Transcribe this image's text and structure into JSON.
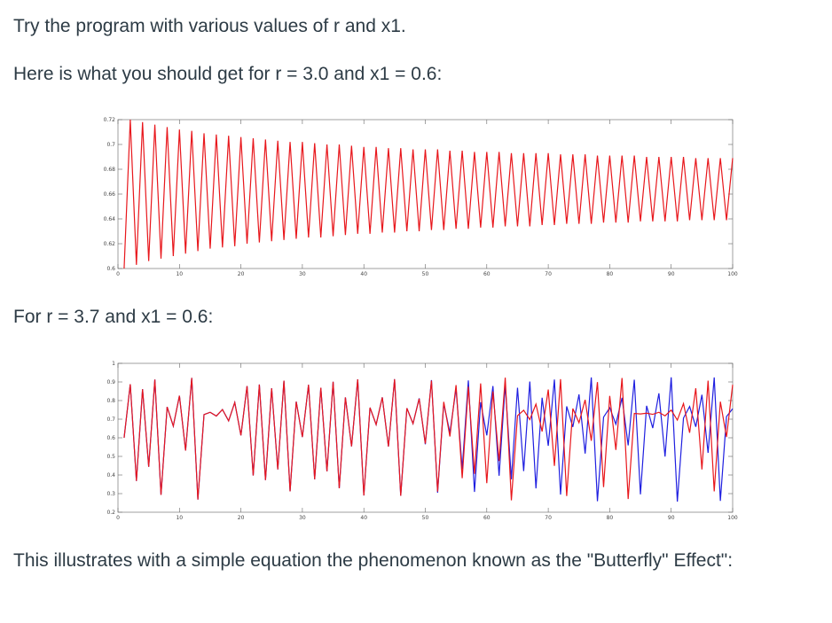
{
  "paragraphs": [
    "Try the program with various values of r and x1.",
    "Here is what you should get for r = 3.0 and x1 = 0.6:",
    "For r = 3.7 and x1 = 0.6:",
    "This illustrates with a simple equation the phenomenon known as the \"Butterfly\" Effect\":"
  ],
  "chart_data": [
    {
      "type": "line",
      "color": "#e8171c",
      "x": [
        1,
        2,
        3,
        4,
        5,
        6,
        7,
        8,
        9,
        10,
        11,
        12,
        13,
        14,
        15,
        16,
        17,
        18,
        19,
        20,
        21,
        22,
        23,
        24,
        25,
        26,
        27,
        28,
        29,
        30,
        31,
        32,
        33,
        34,
        35,
        36,
        37,
        38,
        39,
        40,
        41,
        42,
        43,
        44,
        45,
        46,
        47,
        48,
        49,
        50,
        51,
        52,
        53,
        54,
        55,
        56,
        57,
        58,
        59,
        60,
        61,
        62,
        63,
        64,
        65,
        66,
        67,
        68,
        69,
        70,
        71,
        72,
        73,
        74,
        75,
        76,
        77,
        78,
        79,
        80,
        81,
        82,
        83,
        84,
        85,
        86,
        87,
        88,
        89,
        90,
        91,
        92,
        93,
        94,
        95,
        96,
        97,
        98,
        99,
        100
      ],
      "values": [
        0.6,
        0.72,
        0.603,
        0.718,
        0.606,
        0.716,
        0.608,
        0.714,
        0.61,
        0.712,
        0.612,
        0.711,
        0.614,
        0.709,
        0.616,
        0.708,
        0.617,
        0.707,
        0.618,
        0.706,
        0.62,
        0.705,
        0.621,
        0.704,
        0.622,
        0.703,
        0.623,
        0.702,
        0.624,
        0.702,
        0.625,
        0.701,
        0.625,
        0.7,
        0.626,
        0.7,
        0.627,
        0.699,
        0.628,
        0.698,
        0.628,
        0.698,
        0.629,
        0.697,
        0.629,
        0.697,
        0.63,
        0.696,
        0.63,
        0.696,
        0.631,
        0.696,
        0.631,
        0.695,
        0.632,
        0.695,
        0.632,
        0.694,
        0.633,
        0.694,
        0.633,
        0.694,
        0.634,
        0.693,
        0.634,
        0.693,
        0.634,
        0.693,
        0.635,
        0.693,
        0.635,
        0.692,
        0.636,
        0.692,
        0.636,
        0.692,
        0.636,
        0.691,
        0.637,
        0.691,
        0.637,
        0.691,
        0.637,
        0.691,
        0.638,
        0.69,
        0.638,
        0.69,
        0.638,
        0.69,
        0.638,
        0.69,
        0.639,
        0.689,
        0.639,
        0.689,
        0.639,
        0.689,
        0.639,
        0.689
      ],
      "xlim": [
        0,
        100
      ],
      "xticks": [
        0,
        10,
        20,
        30,
        40,
        50,
        60,
        70,
        80,
        90,
        100
      ],
      "ylim": [
        0.6,
        0.72
      ],
      "yticks": [
        0.6,
        0.62,
        0.64,
        0.66,
        0.68,
        0.7,
        0.72
      ],
      "grid": false
    },
    {
      "type": "line",
      "x": [
        1,
        2,
        3,
        4,
        5,
        6,
        7,
        8,
        9,
        10,
        11,
        12,
        13,
        14,
        15,
        16,
        17,
        18,
        19,
        20,
        21,
        22,
        23,
        24,
        25,
        26,
        27,
        28,
        29,
        30,
        31,
        32,
        33,
        34,
        35,
        36,
        37,
        38,
        39,
        40,
        41,
        42,
        43,
        44,
        45,
        46,
        47,
        48,
        49,
        50,
        51,
        52,
        53,
        54,
        55,
        56,
        57,
        58,
        59,
        60,
        61,
        62,
        63,
        64,
        65,
        66,
        67,
        68,
        69,
        70,
        71,
        72,
        73,
        74,
        75,
        76,
        77,
        78,
        79,
        80,
        81,
        82,
        83,
        84,
        85,
        86,
        87,
        88,
        89,
        90,
        91,
        92,
        93,
        94,
        95,
        96,
        97,
        98,
        99,
        100
      ],
      "series": [
        {
          "color": "#1f1fe0",
          "values": [
            0.6,
            0.888,
            0.368,
            0.861,
            0.444,
            0.913,
            0.293,
            0.766,
            0.663,
            0.826,
            0.531,
            0.922,
            0.268,
            0.725,
            0.737,
            0.717,
            0.752,
            0.691,
            0.79,
            0.613,
            0.878,
            0.397,
            0.886,
            0.373,
            0.866,
            0.43,
            0.907,
            0.312,
            0.794,
            0.604,
            0.885,
            0.377,
            0.869,
            0.42,
            0.901,
            0.329,
            0.817,
            0.554,
            0.914,
            0.29,
            0.762,
            0.671,
            0.817,
            0.553,
            0.915,
            0.288,
            0.759,
            0.676,
            0.812,
            0.565,
            0.91,
            0.305,
            0.784,
            0.627,
            0.865,
            0.432,
            0.908,
            0.309,
            0.791,
            0.613,
            0.878,
            0.396,
            0.885,
            0.377,
            0.869,
            0.421,
            0.902,
            0.328,
            0.815,
            0.557,
            0.913,
            0.295,
            0.769,
            0.658,
            0.833,
            0.515,
            0.924,
            0.259,
            0.711,
            0.761,
            0.673,
            0.815,
            0.559,
            0.912,
            0.296,
            0.772,
            0.652,
            0.839,
            0.499,
            0.925,
            0.257,
            0.706,
            0.768,
            0.659,
            0.831,
            0.519,
            0.924,
            0.261,
            0.714,
            0.756
          ]
        },
        {
          "color": "#e8171c",
          "values": [
            0.6,
            0.888,
            0.368,
            0.861,
            0.444,
            0.913,
            0.293,
            0.766,
            0.663,
            0.826,
            0.531,
            0.922,
            0.268,
            0.725,
            0.737,
            0.717,
            0.752,
            0.691,
            0.79,
            0.613,
            0.878,
            0.397,
            0.886,
            0.373,
            0.866,
            0.43,
            0.907,
            0.312,
            0.794,
            0.604,
            0.885,
            0.377,
            0.869,
            0.42,
            0.901,
            0.329,
            0.817,
            0.554,
            0.914,
            0.29,
            0.762,
            0.671,
            0.817,
            0.553,
            0.915,
            0.288,
            0.759,
            0.676,
            0.81,
            0.569,
            0.907,
            0.311,
            0.793,
            0.607,
            0.883,
            0.383,
            0.875,
            0.406,
            0.892,
            0.356,
            0.849,
            0.475,
            0.923,
            0.264,
            0.719,
            0.748,
            0.698,
            0.781,
            0.634,
            0.859,
            0.449,
            0.915,
            0.287,
            0.757,
            0.681,
            0.804,
            0.584,
            0.899,
            0.335,
            0.825,
            0.535,
            0.921,
            0.271,
            0.731,
            0.728,
            0.732,
            0.726,
            0.737,
            0.718,
            0.749,
            0.695,
            0.784,
            0.627,
            0.866,
            0.43,
            0.907,
            0.312,
            0.794,
            0.604,
            0.885
          ]
        }
      ],
      "xlim": [
        0,
        100
      ],
      "xticks": [
        0,
        10,
        20,
        30,
        40,
        50,
        60,
        70,
        80,
        90,
        100
      ],
      "ylim": [
        0.2,
        1
      ],
      "yticks": [
        0.2,
        0.3,
        0.4,
        0.5,
        0.6,
        0.7,
        0.8,
        0.9,
        1
      ],
      "grid": false
    }
  ]
}
